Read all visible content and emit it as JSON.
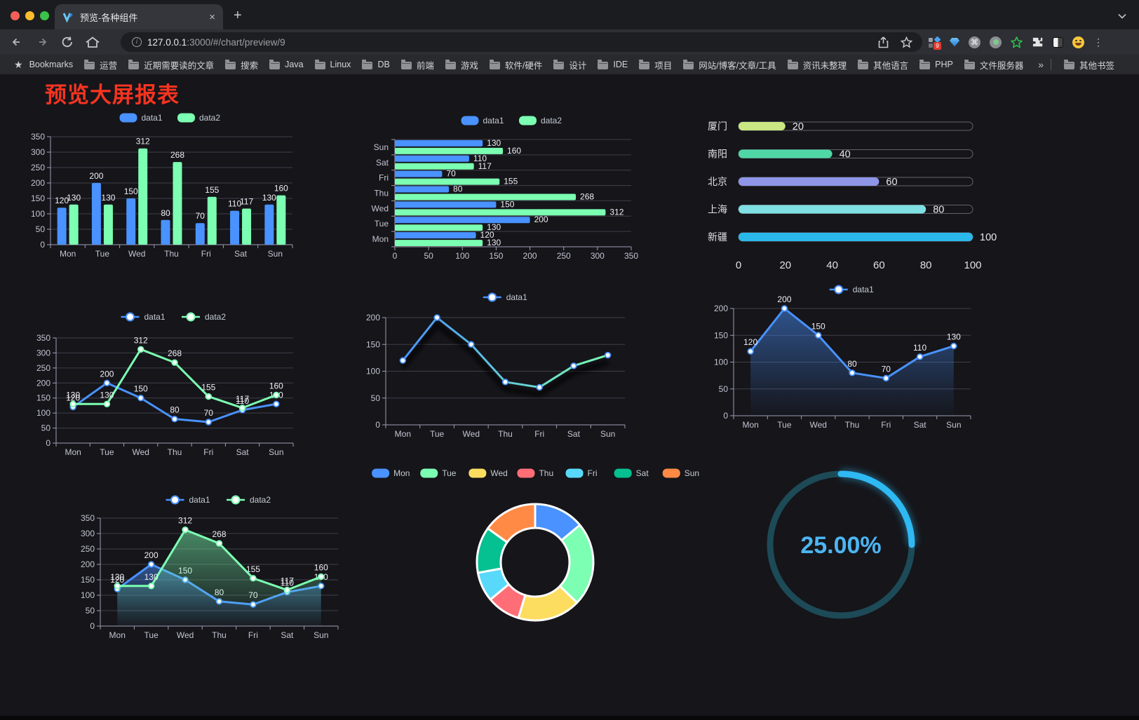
{
  "browser": {
    "tab_title": "预览-各种组件",
    "url_host": "127.0.0.1",
    "url_rest": ":3000/#/chart/preview/9",
    "bookmarks_label": "Bookmarks",
    "bookmarks": [
      "运营",
      "近期需要读的文章",
      "搜索",
      "Java",
      "Linux",
      "DB",
      "前端",
      "游戏",
      "软件/硬件",
      "设计",
      "IDE",
      "项目",
      "网站/博客/文章/工具",
      "资讯未整理",
      "其他语言",
      "PHP",
      "文件服务器"
    ],
    "bookmarks_overflow": "»",
    "other_bookmarks": "其他书签",
    "extension_badge": "9",
    "new_tab_plus": "+",
    "close_x": "×"
  },
  "page": {
    "title": "预览大屏报表"
  },
  "chart_data": [
    {
      "id": "bar_vertical",
      "type": "bar",
      "categories": [
        "Mon",
        "Tue",
        "Wed",
        "Thu",
        "Fri",
        "Sat",
        "Sun"
      ],
      "series": [
        {
          "name": "data1",
          "color": "#4992ff",
          "values": [
            120,
            200,
            150,
            80,
            70,
            110,
            130
          ]
        },
        {
          "name": "data2",
          "color": "#7cffb2",
          "values": [
            130,
            130,
            312,
            268,
            155,
            117,
            160
          ]
        }
      ],
      "ylim": [
        0,
        350
      ],
      "ytick_step": 50,
      "legend_position": "top",
      "grid": true
    },
    {
      "id": "bar_horizontal",
      "type": "bar-horizontal",
      "categories": [
        "Mon",
        "Tue",
        "Wed",
        "Thu",
        "Fri",
        "Sat",
        "Sun"
      ],
      "series": [
        {
          "name": "data1",
          "color": "#4992ff",
          "values": [
            120,
            200,
            150,
            80,
            70,
            110,
            130
          ]
        },
        {
          "name": "data2",
          "color": "#7cffb2",
          "values": [
            130,
            130,
            312,
            268,
            155,
            117,
            160
          ]
        }
      ],
      "xlim": [
        0,
        350
      ],
      "xtick_step": 50,
      "legend_position": "top",
      "grid": true
    },
    {
      "id": "city_progress",
      "type": "bar-progress",
      "categories": [
        "厦门",
        "南阳",
        "北京",
        "上海",
        "新疆"
      ],
      "values": [
        20,
        40,
        60,
        80,
        100
      ],
      "colors": [
        "#c9e783",
        "#4fd7a6",
        "#8f96e8",
        "#7ee0e2",
        "#2ab8ea"
      ],
      "xlim": [
        0,
        100
      ],
      "xticks": [
        0,
        20,
        40,
        60,
        80,
        100
      ]
    },
    {
      "id": "line_two",
      "type": "line",
      "categories": [
        "Mon",
        "Tue",
        "Wed",
        "Thu",
        "Fri",
        "Sat",
        "Sun"
      ],
      "series": [
        {
          "name": "data1",
          "color": "#4992ff",
          "values": [
            120,
            200,
            150,
            80,
            70,
            110,
            130
          ]
        },
        {
          "name": "data2",
          "color": "#7cffb2",
          "values": [
            130,
            130,
            312,
            268,
            155,
            117,
            160
          ]
        }
      ],
      "ylim": [
        0,
        350
      ],
      "ytick_step": 50,
      "show_labels": true
    },
    {
      "id": "line_gradient",
      "type": "line-gradient",
      "categories": [
        "Mon",
        "Tue",
        "Wed",
        "Thu",
        "Fri",
        "Sat",
        "Sun"
      ],
      "series": [
        {
          "name": "data1",
          "color": "#4992ff",
          "color_end": "#7cffb2",
          "values": [
            120,
            200,
            150,
            80,
            70,
            110,
            130
          ]
        }
      ],
      "ylim": [
        0,
        200
      ],
      "ytick_step": 50,
      "show_labels": false
    },
    {
      "id": "area_single",
      "type": "area",
      "categories": [
        "Mon",
        "Tue",
        "Wed",
        "Thu",
        "Fri",
        "Sat",
        "Sun"
      ],
      "series": [
        {
          "name": "data1",
          "color": "#4992ff",
          "values": [
            120,
            200,
            150,
            80,
            70,
            110,
            130
          ]
        }
      ],
      "ylim": [
        0,
        200
      ],
      "ytick_step": 50,
      "show_labels": true
    },
    {
      "id": "area_two",
      "type": "area",
      "categories": [
        "Mon",
        "Tue",
        "Wed",
        "Thu",
        "Fri",
        "Sat",
        "Sun"
      ],
      "series": [
        {
          "name": "data1",
          "color": "#4992ff",
          "values": [
            120,
            200,
            150,
            80,
            70,
            110,
            130
          ]
        },
        {
          "name": "data2",
          "color": "#7cffb2",
          "values": [
            130,
            130,
            312,
            268,
            155,
            117,
            160
          ]
        }
      ],
      "ylim": [
        0,
        350
      ],
      "ytick_step": 50,
      "show_labels": true
    },
    {
      "id": "donut",
      "type": "pie",
      "categories": [
        "Mon",
        "Tue",
        "Wed",
        "Thu",
        "Fri",
        "Sat",
        "Sun"
      ],
      "values": [
        120,
        200,
        150,
        80,
        70,
        110,
        130
      ],
      "colors": [
        "#4992ff",
        "#7cffb2",
        "#fddd60",
        "#ff6e76",
        "#58d9f9",
        "#05c091",
        "#ff8a45"
      ]
    },
    {
      "id": "gauge",
      "type": "gauge",
      "value_label": "25.00%",
      "percent": 25,
      "color": "#2fb9f2",
      "track_color": "#1d4a57"
    }
  ]
}
